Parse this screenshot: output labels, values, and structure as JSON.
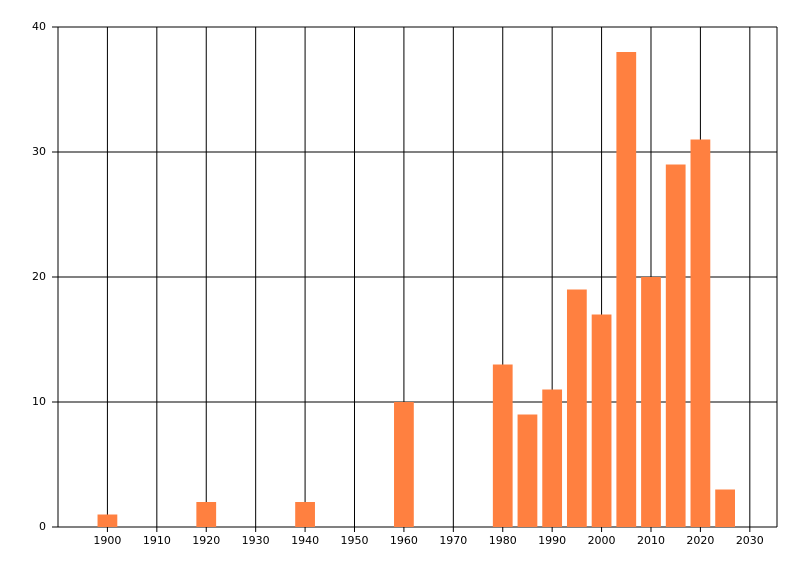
{
  "chart_data": {
    "type": "bar",
    "x": [
      1900,
      1920,
      1940,
      1960,
      1980,
      1985,
      1990,
      1995,
      2000,
      2005,
      2010,
      2015,
      2020,
      2025
    ],
    "values": [
      1,
      2,
      2,
      10,
      13,
      9,
      11,
      19,
      17,
      38,
      20,
      29,
      31,
      3
    ],
    "color": "#ff8040",
    "xlim": [
      1890,
      2035.5
    ],
    "xticks": [
      1900,
      1910,
      1920,
      1930,
      1940,
      1950,
      1960,
      1970,
      1980,
      1990,
      2000,
      2010,
      2020,
      2030
    ],
    "ylim": [
      0,
      40
    ],
    "yticks": [
      0,
      10,
      20,
      30,
      40
    ],
    "grid": true
  }
}
